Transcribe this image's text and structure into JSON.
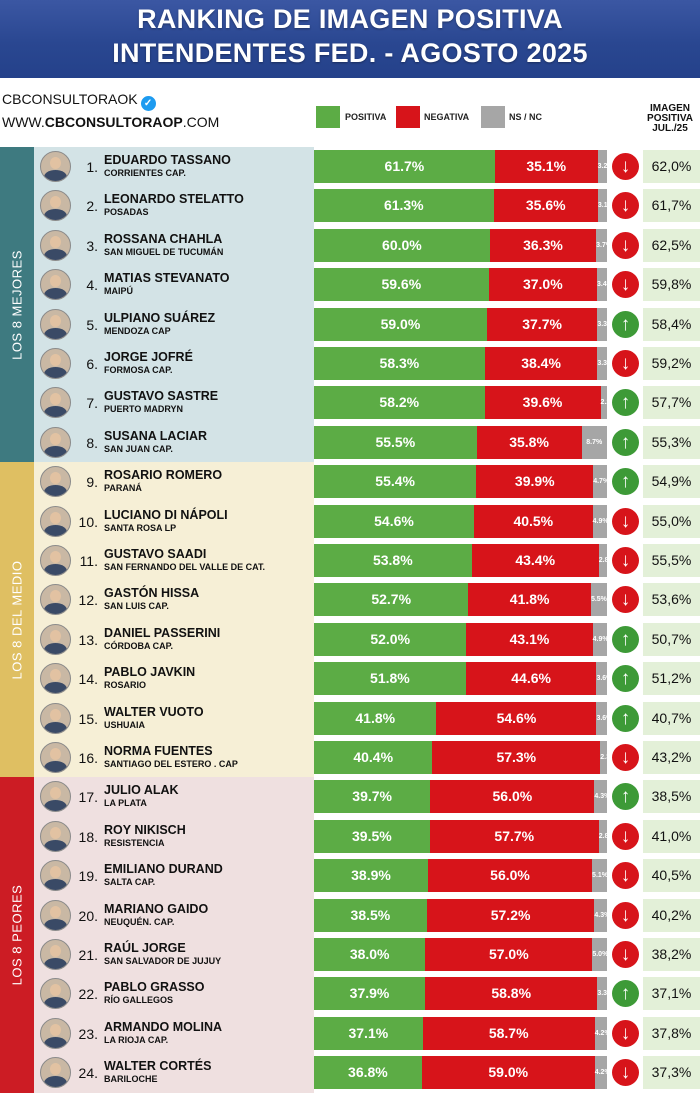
{
  "title_line1": "RANKING DE IMAGEN POSITIVA",
  "title_line2": "INTENDENTES FED. - AGOSTO 2025",
  "brand": {
    "handle": "CBCONSULTORAOK",
    "web_prefix": "WWW.",
    "web_bold": "CBCONSULTORAOP",
    "web_suffix": ".COM"
  },
  "colors": {
    "positive": "#5cac45",
    "negative": "#d7141a",
    "ns_nc": "#a6a6a6",
    "header": "#2a4791",
    "group_best": "#3e7a80",
    "group_mid": "#dfbf62",
    "group_worst": "#cc1c24",
    "arrow_up": "#3d9a37",
    "arrow_down": "#d7141a"
  },
  "groups": [
    {
      "label": "LOS 8 MEJORES",
      "color": "#3e7a80",
      "bg": "#d3e3e6"
    },
    {
      "label": "LOS 8 DEL MEDIO",
      "color": "#dfbf62",
      "bg": "#f6efd6"
    },
    {
      "label": "LOS 8 PEORES",
      "color": "#cc1c24",
      "bg": "#efe0e0"
    }
  ],
  "chart_data": {
    "type": "bar",
    "stacked": true,
    "orientation": "horizontal",
    "title": "RANKING DE IMAGEN POSITIVA INTENDENTES FED. - AGOSTO 2025",
    "legend": [
      {
        "name": "POSITIVA",
        "color": "#5cac45"
      },
      {
        "name": "NEGATIVA",
        "color": "#d7141a"
      },
      {
        "name": "NS / NC",
        "color": "#a6a6a6"
      }
    ],
    "prev_column_label": [
      "IMAGEN",
      "POSITIVA",
      "JUL./25"
    ],
    "rows": [
      {
        "rank": "1.",
        "name": "EDUARDO TASSANO",
        "city": "CORRIENTES CAP.",
        "pos": 61.7,
        "neg": 35.1,
        "ns": 3.2,
        "pos_label": "61.7%",
        "neg_label": "35.1%",
        "ns_label": "3.2%",
        "trend": "down",
        "prev": "62,0%"
      },
      {
        "rank": "2.",
        "name": "LEONARDO STELATTO",
        "city": "POSADAS",
        "pos": 61.3,
        "neg": 35.6,
        "ns": 3.1,
        "pos_label": "61.3%",
        "neg_label": "35.6%",
        "ns_label": "3.1%",
        "trend": "down",
        "prev": "61,7%"
      },
      {
        "rank": "3.",
        "name": "ROSSANA CHAHLA",
        "city": "SAN MIGUEL DE TUCUMÁN",
        "pos": 60.0,
        "neg": 36.3,
        "ns": 3.7,
        "pos_label": "60.0%",
        "neg_label": "36.3%",
        "ns_label": "3.7%",
        "trend": "down",
        "prev": "62,5%"
      },
      {
        "rank": "4.",
        "name": "MATIAS STEVANATO",
        "city": "MAIPÚ",
        "pos": 59.6,
        "neg": 37.0,
        "ns": 3.4,
        "pos_label": "59.6%",
        "neg_label": "37.0%",
        "ns_label": "3.4%",
        "trend": "down",
        "prev": "59,8%"
      },
      {
        "rank": "5.",
        "name": "ULPIANO SUÁREZ",
        "city": "MENDOZA CAP",
        "pos": 59.0,
        "neg": 37.7,
        "ns": 3.3,
        "pos_label": "59.0%",
        "neg_label": "37.7%",
        "ns_label": "3.3%",
        "trend": "up",
        "prev": "58,4%"
      },
      {
        "rank": "6.",
        "name": "JORGE JOFRÉ",
        "city": "FORMOSA CAP.",
        "pos": 58.3,
        "neg": 38.4,
        "ns": 3.3,
        "pos_label": "58.3%",
        "neg_label": "38.4%",
        "ns_label": "3.3%",
        "trend": "down",
        "prev": "59,2%"
      },
      {
        "rank": "7.",
        "name": "GUSTAVO SASTRE",
        "city": "PUERTO MADRYN",
        "pos": 58.2,
        "neg": 39.6,
        "ns": 2.2,
        "pos_label": "58.2%",
        "neg_label": "39.6%",
        "ns_label": "2.2",
        "trend": "up",
        "prev": "57,7%"
      },
      {
        "rank": "8.",
        "name": "SUSANA LACIAR",
        "city": "SAN JUAN CAP.",
        "pos": 55.5,
        "neg": 35.8,
        "ns": 8.7,
        "pos_label": "55.5%",
        "neg_label": "35.8%",
        "ns_label": "8.7%",
        "trend": "up",
        "prev": "55,3%"
      },
      {
        "rank": "9.",
        "name": "ROSARIO ROMERO",
        "city": "PARANÁ",
        "pos": 55.4,
        "neg": 39.9,
        "ns": 4.7,
        "pos_label": "55.4%",
        "neg_label": "39.9%",
        "ns_label": "4.7%",
        "trend": "up",
        "prev": "54,9%"
      },
      {
        "rank": "10.",
        "name": "LUCIANO DI NÁPOLI",
        "city": "SANTA ROSA LP",
        "pos": 54.6,
        "neg": 40.5,
        "ns": 4.9,
        "pos_label": "54.6%",
        "neg_label": "40.5%",
        "ns_label": "4.9%",
        "trend": "down",
        "prev": "55,0%"
      },
      {
        "rank": "11.",
        "name": "GUSTAVO SAADI",
        "city": "SAN FERNANDO DEL VALLE DE CAT.",
        "pos": 53.8,
        "neg": 43.4,
        "ns": 2.8,
        "pos_label": "53.8%",
        "neg_label": "43.4%",
        "ns_label": "2.8%",
        "trend": "down",
        "prev": "55,5%"
      },
      {
        "rank": "12.",
        "name": "GASTÓN HISSA",
        "city": "SAN LUIS CAP.",
        "pos": 52.7,
        "neg": 41.8,
        "ns": 5.5,
        "pos_label": "52.7%",
        "neg_label": "41.8%",
        "ns_label": "5.5%",
        "trend": "down",
        "prev": "53,6%"
      },
      {
        "rank": "13.",
        "name": "DANIEL PASSERINI",
        "city": "CÓRDOBA CAP.",
        "pos": 52.0,
        "neg": 43.1,
        "ns": 4.9,
        "pos_label": "52.0%",
        "neg_label": "43.1%",
        "ns_label": "4.9%",
        "trend": "up",
        "prev": "50,7%"
      },
      {
        "rank": "14.",
        "name": "PABLO JAVKIN",
        "city": "ROSARIO",
        "pos": 51.8,
        "neg": 44.6,
        "ns": 3.6,
        "pos_label": "51.8%",
        "neg_label": "44.6%",
        "ns_label": "3.6%",
        "trend": "up",
        "prev": "51,2%"
      },
      {
        "rank": "15.",
        "name": "WALTER VUOTO",
        "city": "USHUAIA",
        "pos": 41.8,
        "neg": 54.6,
        "ns": 3.6,
        "pos_label": "41.8%",
        "neg_label": "54.6%",
        "ns_label": "3.6%",
        "trend": "up",
        "prev": "40,7%"
      },
      {
        "rank": "16.",
        "name": "NORMA FUENTES",
        "city": "SANTIAGO DEL ESTERO . CAP",
        "pos": 40.4,
        "neg": 57.3,
        "ns": 2.3,
        "pos_label": "40.4%",
        "neg_label": "57.3%",
        "ns_label": "2.3%",
        "trend": "down",
        "prev": "43,2%"
      },
      {
        "rank": "17.",
        "name": "JULIO ALAK",
        "city": "LA PLATA",
        "pos": 39.7,
        "neg": 56.0,
        "ns": 4.3,
        "pos_label": "39.7%",
        "neg_label": "56.0%",
        "ns_label": "4.3%",
        "trend": "up",
        "prev": "38,5%"
      },
      {
        "rank": "18.",
        "name": "ROY NIKISCH",
        "city": "RESISTENCIA",
        "pos": 39.5,
        "neg": 57.7,
        "ns": 2.8,
        "pos_label": "39.5%",
        "neg_label": "57.7%",
        "ns_label": "2.8%",
        "trend": "down",
        "prev": "41,0%"
      },
      {
        "rank": "19.",
        "name": "EMILIANO DURAND",
        "city": "SALTA CAP.",
        "pos": 38.9,
        "neg": 56.0,
        "ns": 5.1,
        "pos_label": "38.9%",
        "neg_label": "56.0%",
        "ns_label": "5.1%",
        "trend": "down",
        "prev": "40,5%"
      },
      {
        "rank": "20.",
        "name": "MARIANO GAIDO",
        "city": "NEUQUÉN. CAP.",
        "pos": 38.5,
        "neg": 57.2,
        "ns": 4.3,
        "pos_label": "38.5%",
        "neg_label": "57.2%",
        "ns_label": "4.3%",
        "trend": "down",
        "prev": "40,2%"
      },
      {
        "rank": "21.",
        "name": "RAÚL JORGE",
        "city": "SAN SALVADOR DE JUJUY",
        "pos": 38.0,
        "neg": 57.0,
        "ns": 5.0,
        "pos_label": "38.0%",
        "neg_label": "57.0%",
        "ns_label": "5.0%",
        "trend": "down",
        "prev": "38,2%"
      },
      {
        "rank": "22.",
        "name": "PABLO GRASSO",
        "city": "RÍO GALLEGOS",
        "pos": 37.9,
        "neg": 58.8,
        "ns": 3.3,
        "pos_label": "37.9%",
        "neg_label": "58.8%",
        "ns_label": "3.3%",
        "trend": "up",
        "prev": "37,1%"
      },
      {
        "rank": "23.",
        "name": "ARMANDO MOLINA",
        "city": "LA RIOJA CAP.",
        "pos": 37.1,
        "neg": 58.7,
        "ns": 4.2,
        "pos_label": "37.1%",
        "neg_label": "58.7%",
        "ns_label": "4.2%",
        "trend": "down",
        "prev": "37,8%"
      },
      {
        "rank": "24.",
        "name": "WALTER CORTÉS",
        "city": "BARILOCHE",
        "pos": 36.8,
        "neg": 59.0,
        "ns": 4.2,
        "pos_label": "36.8%",
        "neg_label": "59.0%",
        "ns_label": "4.2%",
        "trend": "down",
        "prev": "37,3%"
      }
    ]
  }
}
